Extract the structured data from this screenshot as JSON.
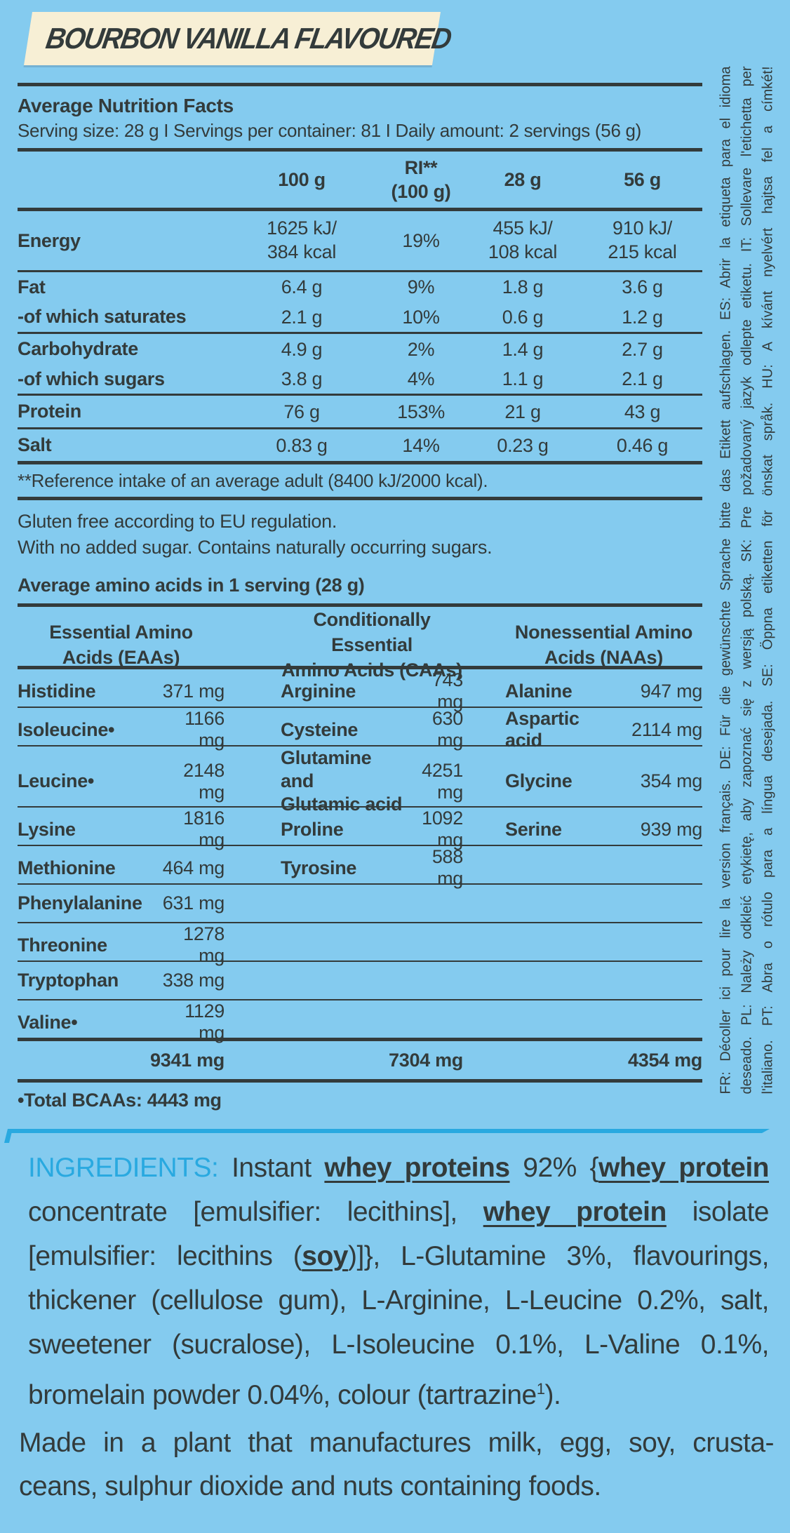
{
  "banner": {
    "title": "BOURBON VANILLA FLAVOURED"
  },
  "colors": {
    "background": "#84CBEF",
    "banner_cream": "#F7EFD5",
    "text_dark": "#333B3B",
    "accent_cyan": "#29A9E0"
  },
  "nutrition": {
    "title": "Average Nutrition Facts",
    "serving_line": "Serving size: 28 g I Servings per container: 81 I Daily amount: 2 servings (56 g)",
    "col_100g": "100 g",
    "col_ri_a": "RI**",
    "col_ri_b": "(100 g)",
    "col_28g": "28 g",
    "col_56g": "56 g",
    "rows": {
      "energy": {
        "label": "Energy",
        "v100a": "1625 kJ/",
        "v100b": "384 kcal",
        "ri": "19%",
        "v28a": "455 kJ/",
        "v28b": "108 kcal",
        "v56a": "910 kJ/",
        "v56b": "215 kcal"
      },
      "fat": {
        "label": "Fat",
        "v100": "6.4 g",
        "ri": "9%",
        "v28": "1.8 g",
        "v56": "3.6 g"
      },
      "saturates": {
        "label": "-of which saturates",
        "v100": "2.1 g",
        "ri": "10%",
        "v28": "0.6 g",
        "v56": "1.2 g"
      },
      "carbohydrate": {
        "label": "Carbohydrate",
        "v100": "4.9 g",
        "ri": "2%",
        "v28": "1.4 g",
        "v56": "2.7 g"
      },
      "sugars": {
        "label": "-of which sugars",
        "v100": "3.8 g",
        "ri": "4%",
        "v28": "1.1 g",
        "v56": "2.1 g"
      },
      "protein": {
        "label": "Protein",
        "v100": "76 g",
        "ri": "153%",
        "v28": "21 g",
        "v56": "43 g"
      },
      "salt": {
        "label": "Salt",
        "v100": "0.83 g",
        "ri": "14%",
        "v28": "0.23 g",
        "v56": "0.46 g"
      }
    },
    "reference_note": "**Reference intake of an average adult (8400 kJ/2000 kcal)."
  },
  "claims": {
    "gluten": "Gluten free according to EU regulation.",
    "sugar": "With no added sugar. Contains naturally occurring sugars."
  },
  "amino": {
    "section_title": "Average amino acids in 1 serving (28 g)",
    "group1_line1": "Essential Amino",
    "group1_line2": "Acids (EAAs)",
    "group2_line1": "Conditionally Essential",
    "group2_line2": "Amino Acids (CAAs)",
    "group3_line1": "Nonessential Amino",
    "group3_line2": "Acids (NAAs)",
    "rows": [
      {
        "n1": "Histidine",
        "v1": "371 mg",
        "n2": "Arginine",
        "v2": "743 mg",
        "n3": "Alanine",
        "v3": "947 mg"
      },
      {
        "n1": "Isoleucine•",
        "v1": "1166 mg",
        "n2": "Cysteine",
        "v2": "630 mg",
        "n3": "Aspartic acid",
        "v3": "2114 mg"
      },
      {
        "n1": "Leucine•",
        "v1": "2148 mg",
        "n2a": "Glutamine and",
        "n2b": "Glutamic acid",
        "v2": "4251 mg",
        "n3": "Glycine",
        "v3": "354 mg"
      },
      {
        "n1": "Lysine",
        "v1": "1816 mg",
        "n2": "Proline",
        "v2": "1092 mg",
        "n3": "Serine",
        "v3": "939 mg"
      },
      {
        "n1": "Methionine",
        "v1": "464 mg",
        "n2": "Tyrosine",
        "v2": "588 mg",
        "n3": "",
        "v3": ""
      },
      {
        "n1": "Phenylalanine",
        "v1": "631 mg",
        "n2": "",
        "v2": "",
        "n3": "",
        "v3": ""
      },
      {
        "n1": "Threonine",
        "v1": "1278 mg",
        "n2": "",
        "v2": "",
        "n3": "",
        "v3": ""
      },
      {
        "n1": "Tryptophan",
        "v1": "338 mg",
        "n2": "",
        "v2": "",
        "n3": "",
        "v3": ""
      },
      {
        "n1": "Valine•",
        "v1": "1129 mg",
        "n2": "",
        "v2": "",
        "n3": "",
        "v3": ""
      }
    ],
    "total1": "9341 mg",
    "total2": "7304 mg",
    "total3": "4354 mg",
    "bcaa_total": "•Total BCAAs: 4443 mg"
  },
  "ingredients": {
    "label": "INGREDIENTS:",
    "seg1": " Instant ",
    "seg2": "whey proteins",
    "seg3": " 92% {",
    "seg4": "whey protein",
    "seg5": " concentrate [emulsifier: lecithins], ",
    "seg6": "whey protein",
    "seg7": " isolate [emulsifier: lecithins (",
    "seg8": "soy",
    "seg9": ")]}, L-Glutamine 3%, flavourings, thickener (cellulose gum), L-Arginine, L-Leucine 0.2%, salt, sweetener (sucralose), L-Isoleucine 0.1%, L-Valine 0.1%, bromelain powder 0.04%, colour (tartrazine",
    "sup": "1",
    "seg10": ")."
  },
  "allergen": {
    "line1": "Made in a plant that manufactures milk, egg, soy, crusta-",
    "line2": "ceans, sulphur dioxide and nuts containing foods."
  },
  "side_note": {
    "line1": "FR: Décoller ici pour lire la version français. DE: Für die gewünschte Sprache bitte das Etikett aufschlagen. ES: Abrir la etiqueta para el idioma",
    "line2": "deseado. PL: Należy odkleić etykietę, aby zapoznać się z wersją polską. SK: Pre požadovaný jazyk odlepte etiketu. IT: Sollevare l'etichetta per",
    "line3": "l'italiano. PT: Abra o rótulo para a língua desejada. SE: Öppna etiketten för önskat språk. HU: A kívánt nyelvért hajtsa fel a címkét!"
  }
}
